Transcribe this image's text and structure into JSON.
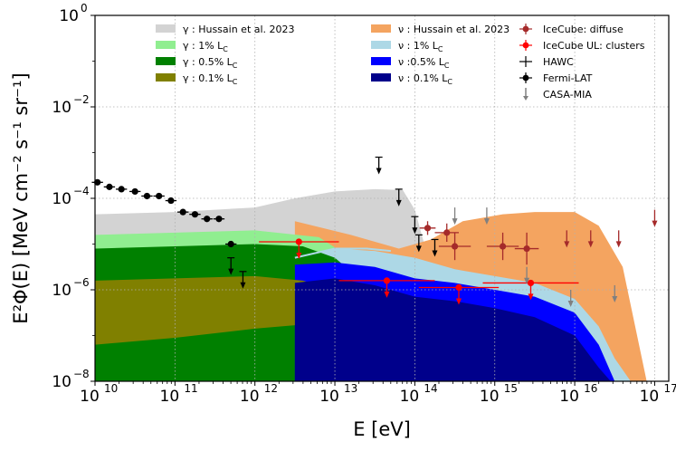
{
  "chart_data": {
    "type": "scatter",
    "title": "",
    "xlabel": "E [eV]",
    "ylabel": "E²Φ(E) [MeV cm⁻² s⁻¹ sr⁻¹]",
    "xscale": "log",
    "yscale": "log",
    "xlim": [
      10000000000.0,
      1.5e+17
    ],
    "ylim": [
      1e-08,
      1
    ],
    "grid": true,
    "legend_position": "top",
    "x_ticks": [
      {
        "base": "10",
        "exp": "10"
      },
      {
        "base": "10",
        "exp": "11"
      },
      {
        "base": "10",
        "exp": "12"
      },
      {
        "base": "10",
        "exp": "13"
      },
      {
        "base": "10",
        "exp": "14"
      },
      {
        "base": "10",
        "exp": "15"
      },
      {
        "base": "10",
        "exp": "16"
      },
      {
        "base": "10",
        "exp": "17"
      }
    ],
    "y_ticks": [
      {
        "base": "10",
        "exp": "0"
      },
      {
        "base": "10",
        "exp": "−2"
      },
      {
        "base": "10",
        "exp": "−4"
      },
      {
        "base": "10",
        "exp": "−6"
      },
      {
        "base": "10",
        "exp": "−8"
      }
    ],
    "bands": [
      {
        "name": "γ : Hussain et al. 2023",
        "color": "#d3d3d3",
        "upper": [
          [
            10,
            -4.35
          ],
          [
            11,
            -4.3
          ],
          [
            12,
            -4.2
          ],
          [
            12.5,
            -4.0
          ],
          [
            13,
            -3.85
          ],
          [
            13.5,
            -3.8
          ],
          [
            13.85,
            -3.82
          ],
          [
            14,
            -4.25
          ],
          [
            14.15,
            -5.2
          ],
          [
            14.3,
            -7.7
          ],
          [
            14.3,
            -8
          ]
        ],
        "lower": [
          [
            10,
            -8
          ],
          [
            14.3,
            -8
          ]
        ]
      },
      {
        "name": "ν : Hussain et al. 2023",
        "color": "#f4a460",
        "upper": [
          [
            12.5,
            -4.5
          ],
          [
            13.2,
            -4.8
          ],
          [
            13.8,
            -5.1
          ],
          [
            14.2,
            -4.9
          ],
          [
            14.6,
            -4.5
          ],
          [
            15.1,
            -4.35
          ],
          [
            15.5,
            -4.3
          ],
          [
            16,
            -4.3
          ],
          [
            16.3,
            -4.6
          ],
          [
            16.6,
            -5.5
          ],
          [
            16.9,
            -8
          ]
        ],
        "lower": [
          [
            12.5,
            -5.8
          ],
          [
            13.5,
            -6.0
          ],
          [
            14,
            -6.4
          ],
          [
            14.5,
            -7.3
          ],
          [
            14.75,
            -8
          ],
          [
            16.9,
            -8
          ]
        ]
      },
      {
        "name": "γ : 1% L_C",
        "color": "#90ee90",
        "upper": [
          [
            10,
            -4.8
          ],
          [
            11,
            -4.75
          ],
          [
            12,
            -4.7
          ],
          [
            12.8,
            -4.85
          ],
          [
            13.2,
            -5.3
          ],
          [
            13.5,
            -6.1
          ],
          [
            13.8,
            -7.2
          ],
          [
            13.95,
            -8
          ]
        ],
        "lower": [
          [
            10,
            -8
          ],
          [
            13.95,
            -8
          ]
        ]
      },
      {
        "name": "ν : 1% L_C",
        "color": "#add8e6",
        "upper": [
          [
            12.5,
            -5.3
          ],
          [
            13,
            -5.1
          ],
          [
            13.5,
            -5.15
          ],
          [
            14,
            -5.3
          ],
          [
            14.5,
            -5.55
          ],
          [
            15,
            -5.7
          ],
          [
            15.5,
            -5.85
          ],
          [
            16,
            -6.2
          ],
          [
            16.3,
            -6.8
          ],
          [
            16.5,
            -7.5
          ],
          [
            16.7,
            -8
          ]
        ],
        "lower": [
          [
            12.5,
            -8
          ],
          [
            16.7,
            -8
          ]
        ]
      },
      {
        "name": "γ : 0.5% L_C",
        "color": "#008000",
        "upper": [
          [
            10,
            -5.1
          ],
          [
            11,
            -5.05
          ],
          [
            12,
            -5.0
          ],
          [
            12.6,
            -5.05
          ],
          [
            13,
            -5.3
          ],
          [
            13.4,
            -5.9
          ],
          [
            13.7,
            -6.9
          ],
          [
            13.9,
            -8
          ]
        ],
        "lower": [
          [
            10,
            -8
          ],
          [
            13.9,
            -8
          ]
        ]
      },
      {
        "name": "ν : 0.5% L_C",
        "color": "#0000ff",
        "upper": [
          [
            12.5,
            -5.45
          ],
          [
            13,
            -5.4
          ],
          [
            13.5,
            -5.5
          ],
          [
            14,
            -5.75
          ],
          [
            14.5,
            -5.85
          ],
          [
            15,
            -6.0
          ],
          [
            15.5,
            -6.15
          ],
          [
            16,
            -6.5
          ],
          [
            16.3,
            -7.2
          ],
          [
            16.5,
            -8
          ]
        ],
        "lower": [
          [
            12.5,
            -8
          ],
          [
            16.5,
            -8
          ]
        ]
      },
      {
        "name": "γ : 0.1% L_C",
        "color": "#808000",
        "upper": [
          [
            10,
            -5.8
          ],
          [
            11,
            -5.75
          ],
          [
            12,
            -5.7
          ],
          [
            12.6,
            -5.8
          ],
          [
            13,
            -6.0
          ],
          [
            13.5,
            -6.6
          ],
          [
            13.8,
            -7.5
          ],
          [
            13.9,
            -8
          ]
        ],
        "lower": [
          [
            10,
            -7.2
          ],
          [
            11,
            -7.05
          ],
          [
            12,
            -6.85
          ],
          [
            13,
            -6.7
          ],
          [
            13.5,
            -6.8
          ],
          [
            13.85,
            -8
          ]
        ]
      },
      {
        "name": "ν : 0.1% L_C",
        "color": "#00008b",
        "upper": [
          [
            12.5,
            -5.85
          ],
          [
            13,
            -5.75
          ],
          [
            13.5,
            -5.9
          ],
          [
            14,
            -6.15
          ],
          [
            14.5,
            -6.25
          ],
          [
            15,
            -6.4
          ],
          [
            15.5,
            -6.6
          ],
          [
            16,
            -7.0
          ],
          [
            16.3,
            -7.7
          ],
          [
            16.45,
            -8
          ]
        ],
        "lower": [
          [
            12.5,
            -8
          ],
          [
            16.45,
            -8
          ]
        ]
      }
    ],
    "ic_top_line": {
      "color": "#add8e6",
      "points": [
        [
          12.5,
          -5.3
        ],
        [
          13,
          -5.1
        ],
        [
          13.4,
          -5.1
        ],
        [
          13.7,
          -5.15
        ]
      ]
    },
    "series": [
      {
        "name": "IceCube: diffuse",
        "color": "#a52a2a",
        "marker": "point",
        "points": [
          [
            14.16,
            -4.65,
            0.1,
            0.15
          ],
          [
            14.4,
            -4.75,
            0.15,
            0.2
          ],
          [
            14.5,
            -5.05,
            0.2,
            0.3
          ],
          [
            15.1,
            -5.05,
            0.2,
            0.3
          ],
          [
            15.4,
            -5.1,
            0.15,
            0.35
          ]
        ]
      },
      {
        "name": "IceCube: diffuse (UL)",
        "color": "#a52a2a",
        "marker": "arrow",
        "points": [
          [
            15.9,
            -4.7
          ],
          [
            16.2,
            -4.7
          ],
          [
            16.55,
            -4.7
          ],
          [
            17,
            -4.25
          ]
        ]
      },
      {
        "name": "IceCube UL: clusters",
        "color": "#ff0000",
        "marker": "point",
        "points": [
          [
            12.55,
            -4.95,
            0.5
          ],
          [
            13.65,
            -5.8,
            0.6
          ],
          [
            14.55,
            -5.95,
            0.5
          ],
          [
            15.45,
            -5.85,
            0.6
          ]
        ]
      },
      {
        "name": "HAWC",
        "color": "#000000",
        "marker": "arrow",
        "points": [
          [
            11.7,
            -5.3
          ],
          [
            11.85,
            -5.6
          ],
          [
            13.55,
            -3.1
          ],
          [
            13.8,
            -3.8
          ],
          [
            14.0,
            -4.4
          ],
          [
            14.05,
            -4.8
          ],
          [
            14.25,
            -4.9
          ]
        ]
      },
      {
        "name": "Fermi-LAT",
        "color": "#000000",
        "marker": "point",
        "points": [
          [
            10.03,
            -3.65
          ],
          [
            10.18,
            -3.75
          ],
          [
            10.33,
            -3.8
          ],
          [
            10.5,
            -3.85
          ],
          [
            10.65,
            -3.95
          ],
          [
            10.8,
            -3.95
          ],
          [
            10.95,
            -4.05
          ],
          [
            11.1,
            -4.3
          ],
          [
            11.25,
            -4.35
          ],
          [
            11.4,
            -4.45
          ],
          [
            11.55,
            -4.45
          ],
          [
            11.7,
            -5.0
          ]
        ]
      },
      {
        "name": "CASA-MIA",
        "color": "#808080",
        "marker": "arrow",
        "points": [
          [
            14.5,
            -4.2
          ],
          [
            14.9,
            -4.2
          ],
          [
            15.4,
            -5.5
          ],
          [
            15.95,
            -6.0
          ],
          [
            16.5,
            -5.9
          ]
        ]
      }
    ]
  },
  "legend": [
    {
      "swatch": "#d3d3d3",
      "kind": "patch",
      "label": "γ :  Hussain et al. 2023"
    },
    {
      "swatch": "#90ee90",
      "kind": "patch",
      "label": "γ : 1% L"
    },
    {
      "swatch": "#008000",
      "kind": "patch",
      "label": "γ : 0.5% L"
    },
    {
      "swatch": "#808000",
      "kind": "patch",
      "label": "γ : 0.1% L"
    },
    {
      "swatch": "#f4a460",
      "kind": "patch",
      "label": "ν :  Hussain et al. 2023"
    },
    {
      "swatch": "#add8e6",
      "kind": "patch",
      "label": "ν : 1% L"
    },
    {
      "swatch": "#0000ff",
      "kind": "patch",
      "label": "ν :0.5% L"
    },
    {
      "swatch": "#00008b",
      "kind": "patch",
      "label": "ν : 0.1% L"
    },
    {
      "swatch": "#a52a2a",
      "kind": "point",
      "label": "IceCube: diffuse"
    },
    {
      "swatch": "#ff0000",
      "kind": "point",
      "label": "IceCube UL: clusters"
    },
    {
      "swatch": "#000000",
      "kind": "errbar",
      "label": "HAWC"
    },
    {
      "swatch": "#000000",
      "kind": "point",
      "label": "Fermi-LAT"
    },
    {
      "swatch": "#808080",
      "kind": "arrow",
      "label": "CASA-MIA"
    }
  ],
  "legend_sub": "C"
}
